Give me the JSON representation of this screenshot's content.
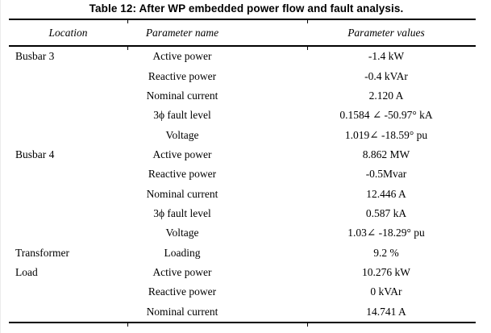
{
  "title": "Table 12: After WP embedded power flow and fault analysis.",
  "table": {
    "headers": [
      "Location",
      "Parameter name",
      "Parameter values"
    ],
    "rows": [
      {
        "location": "Busbar 3",
        "parameter": "Active power",
        "value": "-1.4 kW"
      },
      {
        "location": "",
        "parameter": "Reactive power",
        "value": "-0.4 kVAr"
      },
      {
        "location": "",
        "parameter": "Nominal current",
        "value": "2.120 A"
      },
      {
        "location": "",
        "parameter": "3ϕ fault level",
        "value": "0.1584 ∠ -50.97° kA"
      },
      {
        "location": "",
        "parameter": "Voltage",
        "value": "1.019∠ -18.59° pu"
      },
      {
        "location": "Busbar 4",
        "parameter": "Active power",
        "value": "8.862 MW"
      },
      {
        "location": "",
        "parameter": "Reactive power",
        "value": "-0.5Mvar"
      },
      {
        "location": "",
        "parameter": "Nominal current",
        "value": "12.446 A"
      },
      {
        "location": "",
        "parameter": "3ϕ fault level",
        "value": "0.587 kA"
      },
      {
        "location": "",
        "parameter": "Voltage",
        "value": "1.03∠ -18.29° pu"
      },
      {
        "location": "Transformer",
        "parameter": "Loading",
        "value": "9.2 %"
      },
      {
        "location": "Load",
        "parameter": "Active power",
        "value": "10.276 kW"
      },
      {
        "location": "",
        "parameter": "Reactive power",
        "value": "0 kVAr"
      },
      {
        "location": "",
        "parameter": "Nominal current",
        "value": "14.741 A"
      }
    ]
  },
  "colors": {
    "background": "#ffffff",
    "text": "#000000",
    "rule": "#000000"
  }
}
